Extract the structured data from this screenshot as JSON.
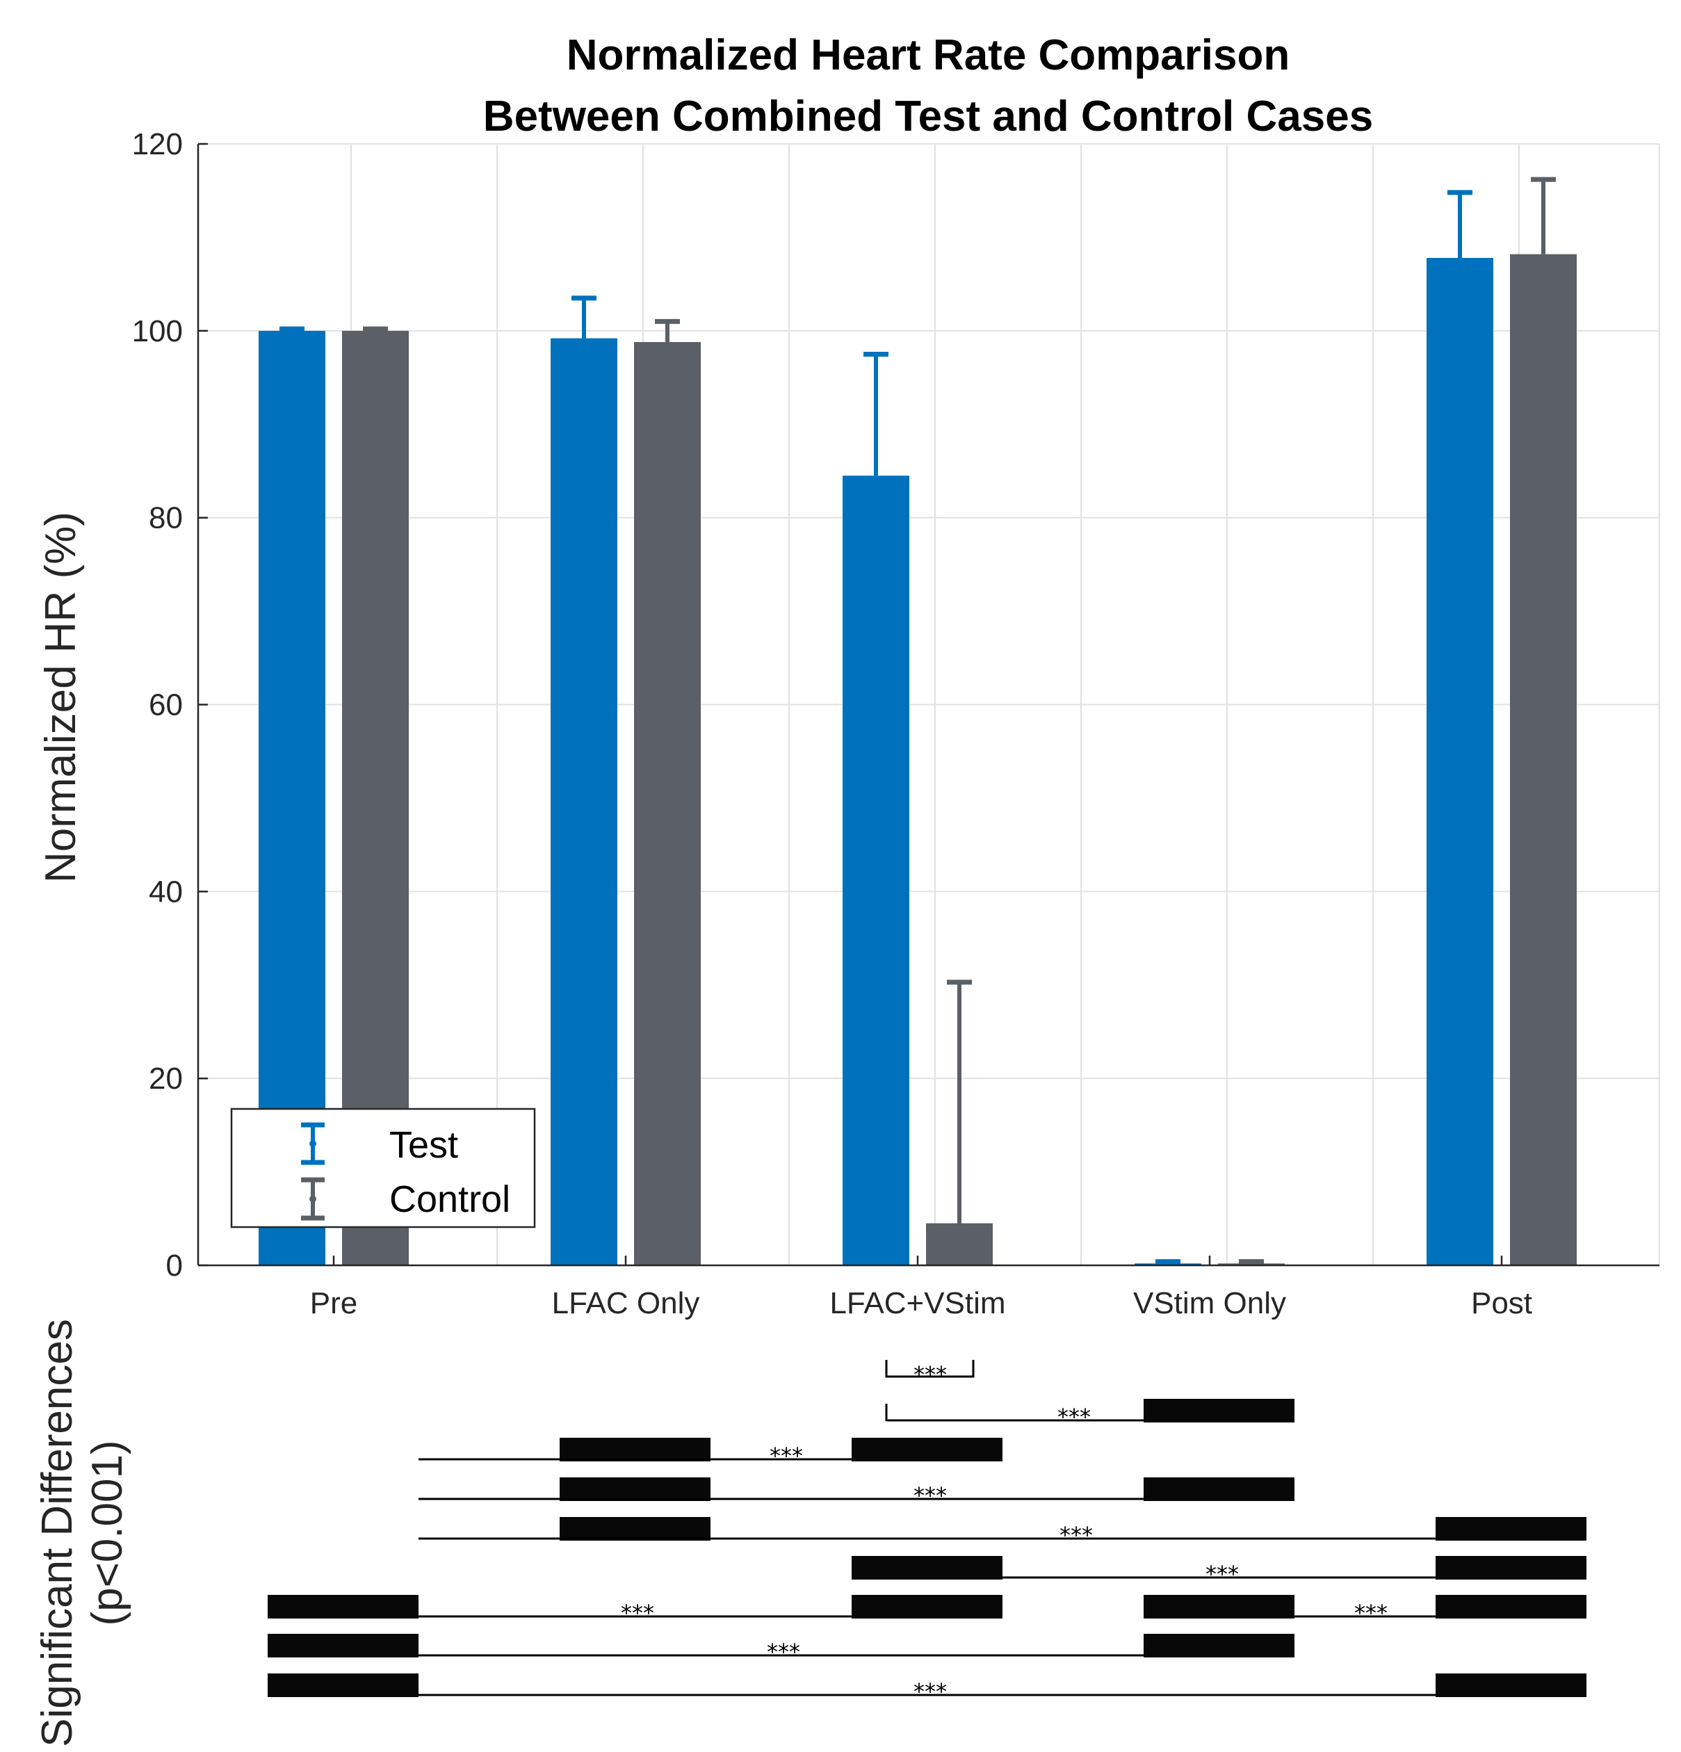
{
  "chart_data": {
    "type": "bar",
    "title": "Normalized Heart Rate Comparison",
    "subtitle": "Between Combined Test and Control Cases",
    "ylabel": "Normalized HR (%)",
    "xlabel": "",
    "ylim": [
      0,
      120
    ],
    "yticks": [
      0,
      20,
      40,
      60,
      80,
      100,
      120
    ],
    "grid": true,
    "categories": [
      "Pre",
      "LFAC Only",
      "LFAC+VStim",
      "VStim Only",
      "Post"
    ],
    "series": [
      {
        "name": "Test",
        "color": "#0072BD",
        "values": [
          100,
          99.2,
          84.5,
          0.2,
          107.8
        ],
        "errors": [
          0.2,
          4.3,
          13,
          0.2,
          7
        ]
      },
      {
        "name": "Control",
        "color": "#5A6066",
        "values": [
          100,
          98.8,
          4.5,
          0.2,
          108.2
        ],
        "errors": [
          0.2,
          2.2,
          25.8,
          0.2,
          8
        ]
      }
    ],
    "legend": {
      "entries": [
        "Test",
        "Control"
      ],
      "location": "bottom-left"
    },
    "significance": {
      "label_line1": "Significant Differences",
      "label_line2": "(p<0.001)",
      "marker": "***",
      "comparisons": [
        {
          "a": "LFAC+VStim Test",
          "b": "LFAC+VStim Control"
        },
        {
          "a": "LFAC+VStim",
          "b": "VStim Only"
        },
        {
          "a": "LFAC Only",
          "b": "LFAC+VStim"
        },
        {
          "a": "LFAC Only",
          "b": "VStim Only"
        },
        {
          "a": "LFAC Only",
          "b": "Post"
        },
        {
          "a": "LFAC+VStim",
          "b": "Post"
        },
        {
          "a": "Pre",
          "b": "LFAC+VStim"
        },
        {
          "a": "VStim Only",
          "b": "Post"
        },
        {
          "a": "Pre",
          "b": "VStim Only"
        },
        {
          "a": "Pre",
          "b": "Post"
        }
      ]
    }
  }
}
